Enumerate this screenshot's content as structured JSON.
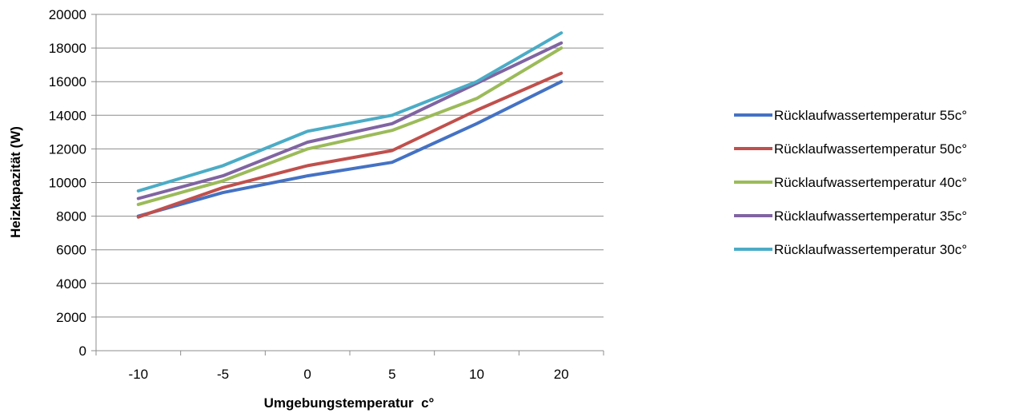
{
  "chart_data": {
    "type": "line",
    "title": "",
    "xlabel": "Umgebungstemperatur  c°",
    "ylabel": "Heizkapazität (W)",
    "categories": [
      "-10",
      "-5",
      "0",
      "5",
      "10",
      "20"
    ],
    "ylim": [
      0,
      20000
    ],
    "yticks": [
      0,
      2000,
      4000,
      6000,
      8000,
      10000,
      12000,
      14000,
      16000,
      18000,
      20000
    ],
    "grid": true,
    "legend_position": "right",
    "series": [
      {
        "name": "Rücklaufwassertemperatur 55c°",
        "color": "#4472C4",
        "values": [
          8000,
          9400,
          10400,
          11200,
          13500,
          16000
        ]
      },
      {
        "name": "Rücklaufwassertemperatur 50c°",
        "color": "#C0504D",
        "values": [
          7950,
          9700,
          11000,
          11900,
          14300,
          16500
        ]
      },
      {
        "name": "Rücklaufwassertemperatur 40c°",
        "color": "#9BBB59",
        "values": [
          8700,
          10100,
          12000,
          13100,
          15000,
          18000
        ]
      },
      {
        "name": "Rücklaufwassertemperatur 35c°",
        "color": "#8064A2",
        "values": [
          9050,
          10400,
          12400,
          13500,
          15900,
          18300
        ]
      },
      {
        "name": "Rücklaufwassertemperatur 30c°",
        "color": "#4BACC6",
        "values": [
          9500,
          11000,
          13050,
          14000,
          16000,
          18900
        ]
      }
    ]
  }
}
